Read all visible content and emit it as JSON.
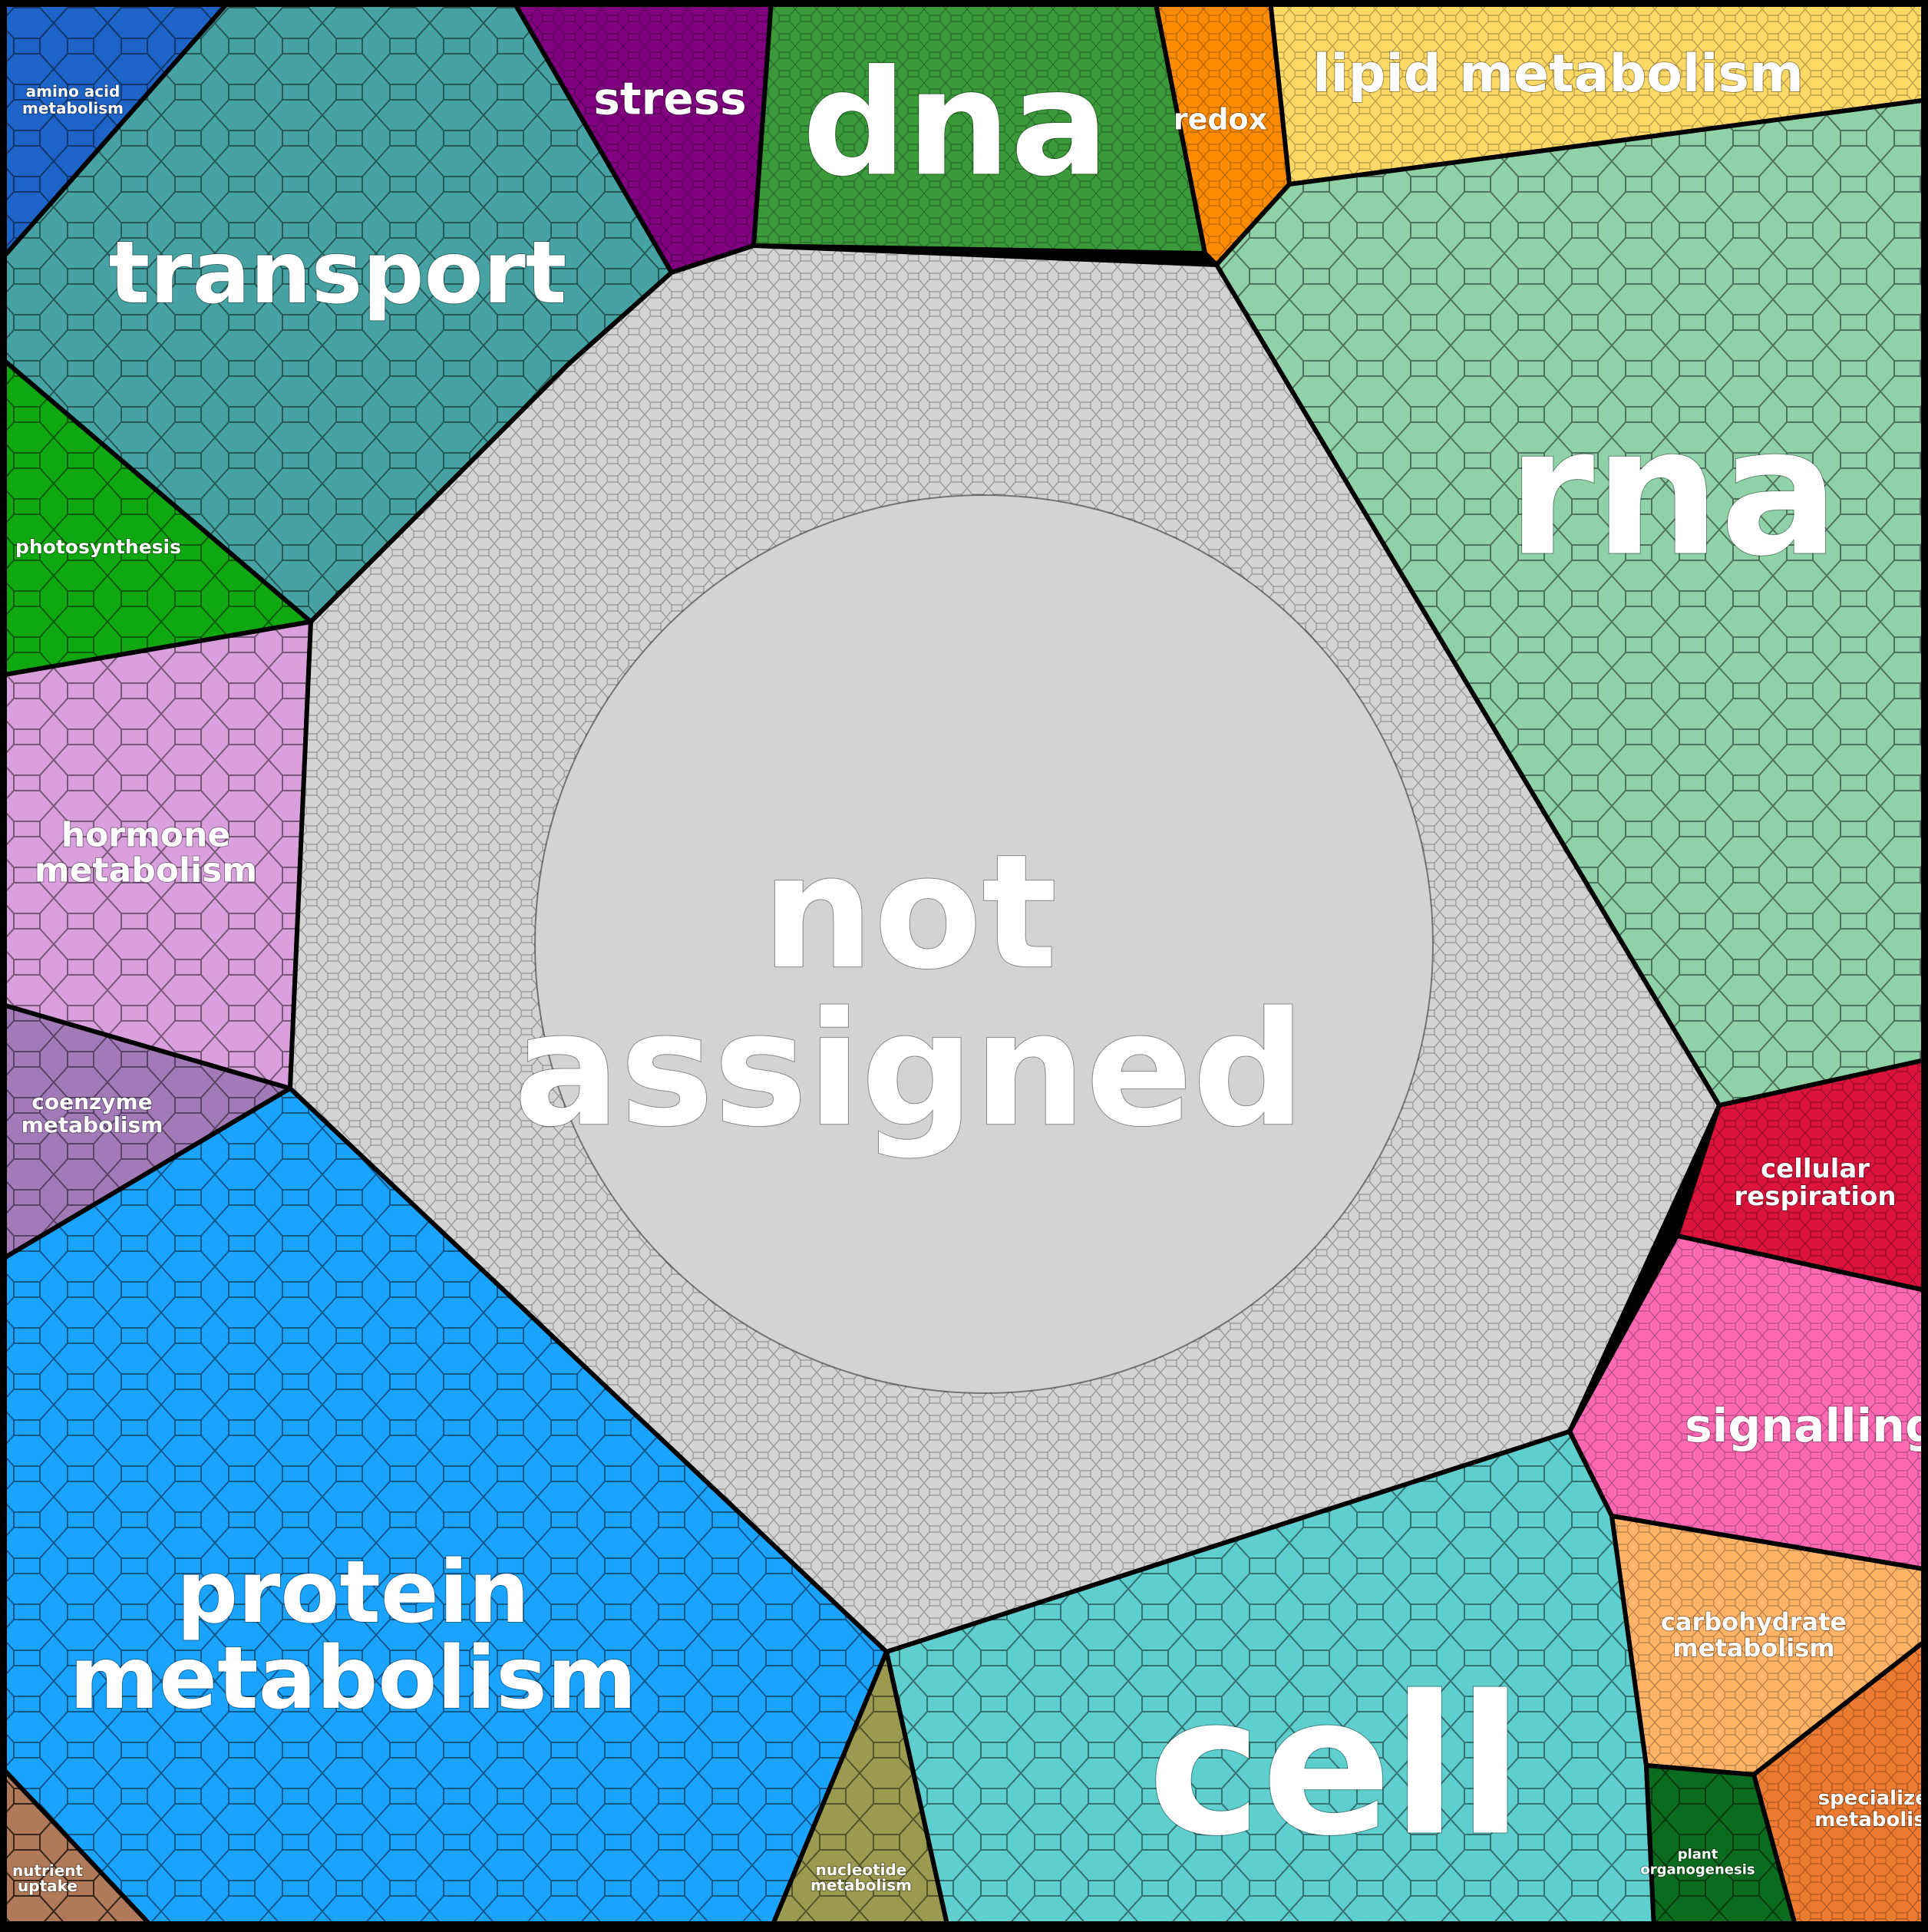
{
  "diagram": {
    "type": "voronoi-treemap",
    "background": "#000000",
    "border_color": "#000000",
    "label_color": "#ffffff",
    "regions": [
      {
        "id": "amino",
        "label": [
          "amino acid",
          "metabolism"
        ],
        "color": "#1e64c8"
      },
      {
        "id": "transport",
        "label": [
          "transport"
        ],
        "color": "#47a3a3"
      },
      {
        "id": "stress",
        "label": [
          "stress"
        ],
        "color": "#800080"
      },
      {
        "id": "dna",
        "label": [
          "dna"
        ],
        "color": "#3a9a3a"
      },
      {
        "id": "redox",
        "label": [
          "redox"
        ],
        "color": "#ff8c00"
      },
      {
        "id": "lipid",
        "label": [
          "lipid metabolism"
        ],
        "color": "#ffd966"
      },
      {
        "id": "rna",
        "label": [
          "rna"
        ],
        "color": "#8fd2a8"
      },
      {
        "id": "photosynthesis",
        "label": [
          "photosynthesis"
        ],
        "color": "#10a810"
      },
      {
        "id": "hormone",
        "label": [
          "hormone",
          "metabolism"
        ],
        "color": "#d9a0dd"
      },
      {
        "id": "coenzyme",
        "label": [
          "coenzyme",
          "metabolism"
        ],
        "color": "#a27ab8"
      },
      {
        "id": "notassigned",
        "label": [
          "not",
          "assigned"
        ],
        "color": "#d3d3d3"
      },
      {
        "id": "cellular",
        "label": [
          "cellular",
          "respiration"
        ],
        "color": "#dc143c"
      },
      {
        "id": "signalling",
        "label": [
          "signalling"
        ],
        "color": "#ff69b4"
      },
      {
        "id": "protein",
        "label": [
          "protein",
          "metabolism"
        ],
        "color": "#1aa3ff"
      },
      {
        "id": "cell",
        "label": [
          "cell"
        ],
        "color": "#5ecece"
      },
      {
        "id": "carbohydrate",
        "label": [
          "carbohydrate",
          "metabolism"
        ],
        "color": "#ffb366"
      },
      {
        "id": "specialized",
        "label": [
          "specialized",
          "metabolism"
        ],
        "color": "#ec7a30"
      },
      {
        "id": "plant",
        "label": [
          "plant",
          "organogenesis"
        ],
        "color": "#0b6b1e"
      },
      {
        "id": "nucleotide",
        "label": [
          "nucleotide",
          "metabolism"
        ],
        "color": "#9a9a50"
      },
      {
        "id": "nutrient",
        "label": [
          "nutrient",
          "uptake"
        ],
        "color": "#b07a5a"
      }
    ]
  }
}
